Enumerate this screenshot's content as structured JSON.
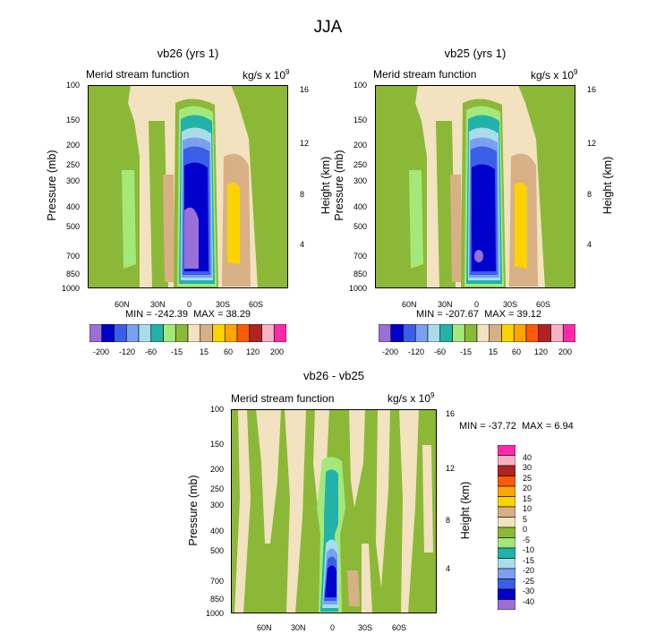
{
  "title": "JJA",
  "colors": {
    "full_palette": [
      "#9b6fd8",
      "#0000cc",
      "#3b5ee8",
      "#7d9ff0",
      "#a8dce8",
      "#21b3aa",
      "#a3e87a",
      "#8cb838",
      "#f2e2c0",
      "#d8b086",
      "#fbd300",
      "#ffa500",
      "#ff5a0a",
      "#b22222",
      "#f5b3c3",
      "#ff2aa8"
    ],
    "diff_palette": [
      "#9b6fd8",
      "#0000cc",
      "#3b5ee8",
      "#7d9ff0",
      "#a8dce8",
      "#21b3aa",
      "#a3e87a",
      "#8cb838",
      "#f2e2c0",
      "#d8b086",
      "#fbd300",
      "#ffa500",
      "#ff5a0a",
      "#b22222",
      "#f5b3c3",
      "#ff2aa8"
    ]
  },
  "chart_data": [
    {
      "type": "heatmap",
      "title": "vb26 (yrs 1)",
      "left_label": "Merid stream function",
      "units": "kg/s x 10",
      "units_exp": "9",
      "ylabel": "Pressure (mb)",
      "ylabel_right": "Height (km)",
      "pressure_ticks": [
        "100",
        "150",
        "200",
        "250",
        "300",
        "400",
        "500",
        "700",
        "850",
        "1000"
      ],
      "height_ticks": [
        "16",
        "12",
        "8",
        "4"
      ],
      "x_ticks": [
        "60N",
        "30N",
        "0",
        "30S",
        "60S"
      ],
      "min_text": "MIN = -242.39",
      "max_text": "MAX =  38.29",
      "min": -242.39,
      "max": 38.29,
      "colorbar_labels": [
        "-200",
        "-120",
        "-60",
        "-15",
        "15",
        "60",
        "120",
        "200"
      ]
    },
    {
      "type": "heatmap",
      "title": "vb25 (yrs 1)",
      "left_label": "Merid stream function",
      "units": "kg/s x 10",
      "units_exp": "9",
      "ylabel": "Pressure (mb)",
      "ylabel_right": "Height (km)",
      "pressure_ticks": [
        "100",
        "150",
        "200",
        "250",
        "300",
        "400",
        "500",
        "700",
        "850",
        "1000"
      ],
      "height_ticks": [
        "16",
        "12",
        "8",
        "4"
      ],
      "x_ticks": [
        "60N",
        "30N",
        "0",
        "30S",
        "60S"
      ],
      "min_text": "MIN = -207.67",
      "max_text": "MAX =  39.12",
      "min": -207.67,
      "max": 39.12,
      "colorbar_labels": [
        "-200",
        "-120",
        "-60",
        "-15",
        "15",
        "60",
        "120",
        "200"
      ]
    },
    {
      "type": "heatmap",
      "title": "vb26 - vb25",
      "left_label": "Merid stream function",
      "units": "kg/s x 10",
      "units_exp": "9",
      "ylabel": "Pressure (mb)",
      "ylabel_right": "Height (km)",
      "pressure_ticks": [
        "100",
        "150",
        "200",
        "250",
        "300",
        "400",
        "500",
        "700",
        "850",
        "1000"
      ],
      "height_ticks": [
        "16",
        "12",
        "8",
        "4"
      ],
      "x_ticks": [
        "60N",
        "30N",
        "0",
        "30S",
        "60S"
      ],
      "min_text": "MIN = -37.72",
      "max_text": "MAX =   6.94",
      "min": -37.72,
      "max": 6.94,
      "colorbar_labels": [
        "40",
        "30",
        "25",
        "20",
        "15",
        "10",
        "5",
        "0",
        "-5",
        "-10",
        "-15",
        "-20",
        "-25",
        "-30",
        "-40"
      ]
    }
  ]
}
